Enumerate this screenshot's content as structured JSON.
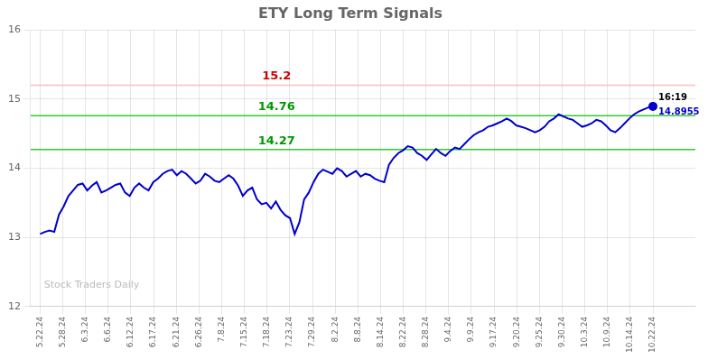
{
  "chart_data": {
    "type": "line",
    "title": "ETY Long Term Signals",
    "x": [
      0,
      1,
      2,
      3,
      4,
      5,
      6,
      7,
      8,
      9,
      10,
      11,
      12,
      13,
      14,
      15,
      16,
      17,
      18,
      19,
      20,
      21,
      22,
      23,
      24,
      25,
      26,
      27,
      28,
      29,
      30,
      31,
      32,
      33,
      34,
      35,
      36,
      37,
      38,
      39,
      40,
      41,
      42,
      43,
      44,
      45,
      46,
      47,
      48,
      49,
      50,
      51,
      52,
      53,
      54,
      55,
      56,
      57,
      58,
      59,
      60,
      61,
      62,
      63,
      64,
      65,
      66,
      67,
      68,
      69,
      70,
      71,
      72,
      73,
      74,
      75,
      76,
      77,
      78,
      79,
      80,
      81,
      82,
      83,
      84,
      85,
      86,
      87,
      88,
      89,
      90,
      91,
      92,
      93,
      94,
      95,
      96,
      97,
      98,
      99,
      100,
      101,
      102,
      103,
      104,
      105,
      106,
      107,
      108,
      109,
      110,
      111,
      112,
      113,
      114,
      115,
      116,
      117,
      118,
      119,
      120,
      121,
      122,
      123,
      124,
      125,
      126,
      127,
      128,
      129,
      130
    ],
    "values": [
      13.05,
      13.08,
      13.1,
      13.08,
      13.33,
      13.45,
      13.6,
      13.68,
      13.76,
      13.78,
      13.68,
      13.75,
      13.8,
      13.65,
      13.68,
      13.72,
      13.76,
      13.78,
      13.65,
      13.6,
      13.72,
      13.78,
      13.72,
      13.68,
      13.8,
      13.85,
      13.92,
      13.96,
      13.98,
      13.9,
      13.96,
      13.92,
      13.85,
      13.78,
      13.82,
      13.92,
      13.88,
      13.82,
      13.8,
      13.85,
      13.9,
      13.85,
      13.75,
      13.6,
      13.68,
      13.72,
      13.55,
      13.48,
      13.5,
      13.42,
      13.52,
      13.4,
      13.32,
      13.28,
      13.05,
      13.22,
      13.55,
      13.65,
      13.8,
      13.92,
      13.98,
      13.95,
      13.92,
      14.0,
      13.96,
      13.88,
      13.92,
      13.96,
      13.88,
      13.92,
      13.9,
      13.85,
      13.82,
      13.8,
      14.05,
      14.15,
      14.22,
      14.26,
      14.32,
      14.3,
      14.22,
      14.18,
      14.12,
      14.2,
      14.28,
      14.22,
      14.18,
      14.25,
      14.3,
      14.28,
      14.35,
      14.42,
      14.48,
      14.52,
      14.55,
      14.6,
      14.62,
      14.65,
      14.68,
      14.72,
      14.68,
      14.62,
      14.6,
      14.58,
      14.55,
      14.52,
      14.55,
      14.6,
      14.68,
      14.72,
      14.78,
      14.75,
      14.72,
      14.7,
      14.65,
      14.6,
      14.62,
      14.65,
      14.7,
      14.68,
      14.62,
      14.55,
      14.52,
      14.58,
      14.65,
      14.72,
      14.78,
      14.82,
      14.85,
      14.88,
      14.8955
    ],
    "color": "#0000cc",
    "xlim": [
      -2,
      139
    ],
    "xticks": [
      {
        "value": 0,
        "label": "5.22.24"
      },
      {
        "value": 4.814814814814815,
        "label": "5.28.24"
      },
      {
        "value": 9.62962962962963,
        "label": "6.3.24"
      },
      {
        "value": 14.444444444444445,
        "label": "6.6.24"
      },
      {
        "value": 19.25925925925926,
        "label": "6.12.24"
      },
      {
        "value": 24.074074074074073,
        "label": "6.17.24"
      },
      {
        "value": 28.88888888888889,
        "label": "6.21.24"
      },
      {
        "value": 33.7037037037037,
        "label": "6.26.24"
      },
      {
        "value": 38.51851851851852,
        "label": "7.8.24"
      },
      {
        "value": 43.333333333333336,
        "label": "7.15.24"
      },
      {
        "value": 48.148148148148145,
        "label": "7.18.24"
      },
      {
        "value": 52.96296296296296,
        "label": "7.23.24"
      },
      {
        "value": 57.77777777777778,
        "label": "7.29.24"
      },
      {
        "value": 62.592592592592595,
        "label": "8.2.24"
      },
      {
        "value": 67.4074074074074,
        "label": "8.8.24"
      },
      {
        "value": 72.22222222222223,
        "label": "8.14.24"
      },
      {
        "value": 77.03703703703704,
        "label": "8.22.24"
      },
      {
        "value": 81.85185185185185,
        "label": "8.28.24"
      },
      {
        "value": 86.66666666666667,
        "label": "9.4.24"
      },
      {
        "value": 91.48148148148148,
        "label": "9.9.24"
      },
      {
        "value": 96.29629629629629,
        "label": "9.17.24"
      },
      {
        "value": 101.11111111111111,
        "label": "9.20.24"
      },
      {
        "value": 105.92592592592592,
        "label": "9.25.24"
      },
      {
        "value": 110.74074074074075,
        "label": "9.30.24"
      },
      {
        "value": 115.55555555555556,
        "label": "10.3.24"
      },
      {
        "value": 120.37037037037037,
        "label": "10.9.24"
      },
      {
        "value": 125.18518518518519,
        "label": "10.14.24"
      },
      {
        "value": 130,
        "label": "10.22.24"
      }
    ],
    "ylim": [
      12,
      16
    ],
    "yticks": [
      12,
      13,
      14,
      15,
      16
    ],
    "grid": true,
    "annotations": [
      {
        "text": "15.2",
        "y": 15.2,
        "color": "#cc0000",
        "line_color": "#ffbbbb"
      },
      {
        "text": "14.76",
        "y": 14.76,
        "color": "#009900",
        "line_color": "#33cc33"
      },
      {
        "text": "14.27",
        "y": 14.27,
        "color": "#009900",
        "line_color": "#33cc33"
      }
    ],
    "last_point_label": "16:19",
    "last_point_value_label": "14.8955",
    "last_point_color": "#0000cc",
    "watermark": "Stock Traders Daily",
    "watermark_color": "#bbbbbb"
  }
}
